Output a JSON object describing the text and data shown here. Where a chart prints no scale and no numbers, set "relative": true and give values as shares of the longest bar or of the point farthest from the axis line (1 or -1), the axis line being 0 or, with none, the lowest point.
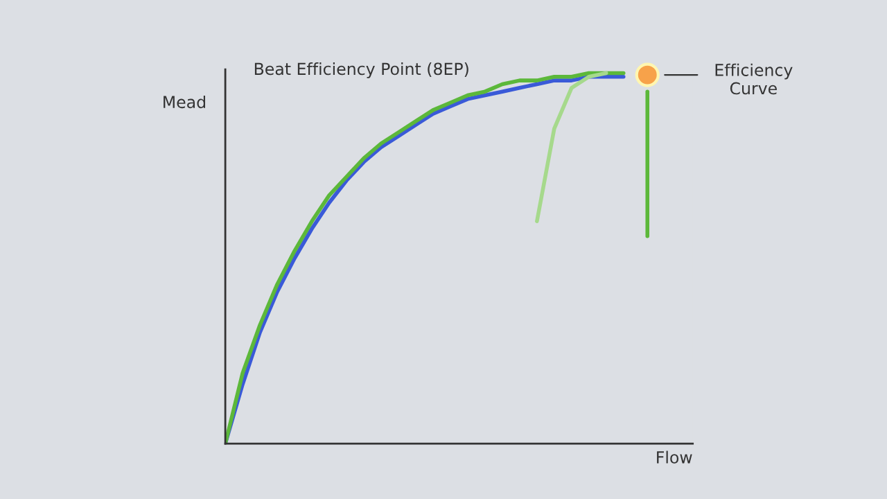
{
  "chart_data": {
    "type": "line",
    "title": "Beat Efficiency Point (8EP)",
    "xlabel": "Flow",
    "ylabel": "Mead",
    "relative": true,
    "categories": [
      null,
      null,
      null,
      null,
      null,
      null,
      null,
      null,
      null,
      null,
      null,
      null,
      null,
      null,
      null,
      null,
      null,
      null,
      null,
      null,
      null,
      null,
      null,
      null,
      null,
      null,
      null,
      null
    ],
    "series": [
      {
        "color": "#3a5ad8",
        "values": [
          0.0,
          0.16,
          0.3,
          0.41,
          0.5,
          0.58,
          0.65,
          0.71,
          0.76,
          0.8,
          0.83,
          0.86,
          0.89,
          0.91,
          0.93,
          0.94,
          0.95,
          0.96,
          0.97,
          0.98,
          0.98,
          0.99,
          0.99,
          0.99,
          null,
          null,
          null,
          null
        ]
      },
      {
        "color": "#5cb83a",
        "values": [
          0.0,
          0.19,
          0.32,
          0.43,
          0.52,
          0.6,
          0.67,
          0.72,
          0.77,
          0.81,
          0.84,
          0.87,
          0.9,
          0.92,
          0.94,
          0.95,
          0.97,
          0.98,
          0.98,
          0.99,
          0.99,
          1.0,
          1.0,
          1.0,
          null,
          null,
          null,
          null
        ]
      },
      {
        "color": "#a6d98c",
        "values": [
          null,
          null,
          null,
          null,
          null,
          null,
          null,
          null,
          null,
          null,
          null,
          null,
          null,
          null,
          null,
          null,
          null,
          null,
          0.6,
          0.85,
          0.96,
          0.99,
          1.0,
          null,
          null,
          null,
          null,
          null
        ]
      }
    ],
    "annotations": [
      "Efficiency\nCurve"
    ],
    "grid": false,
    "legend": false
  }
}
